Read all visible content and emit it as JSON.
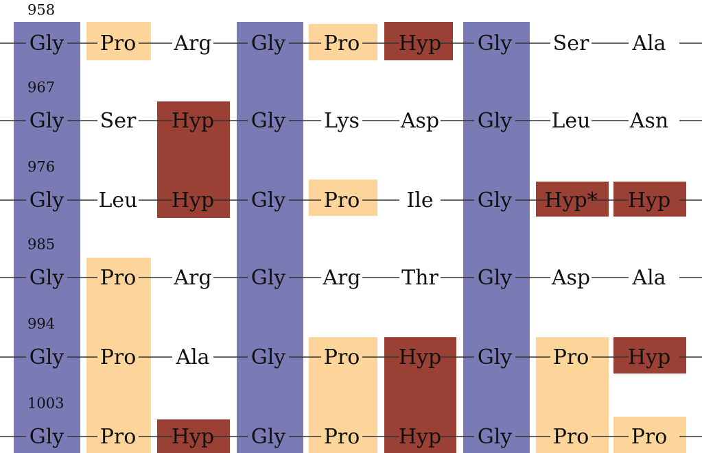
{
  "rows": [
    {
      "number": "958",
      "residues": [
        "Gly",
        "Pro",
        "Arg",
        "Gly",
        "Pro",
        "Hyp",
        "Gly",
        "Ser",
        "Ala"
      ]
    },
    {
      "number": "967",
      "residues": [
        "Gly",
        "Ser",
        "Hyp",
        "Gly",
        "Lys",
        "Asp",
        "Gly",
        "Leu",
        "Asn"
      ]
    },
    {
      "number": "976",
      "residues": [
        "Gly",
        "Leu",
        "Hyp",
        "Gly",
        "Pro",
        "Ile",
        "Gly",
        "Hyp*",
        "Hyp"
      ]
    },
    {
      "number": "985",
      "residues": [
        "Gly",
        "Pro",
        "Arg",
        "Gly",
        "Arg",
        "Thr",
        "Gly",
        "Asp",
        "Ala"
      ]
    },
    {
      "number": "994",
      "residues": [
        "Gly",
        "Pro",
        "Ala",
        "Gly",
        "Pro",
        "Hyp",
        "Gly",
        "Pro",
        "Hyp"
      ]
    },
    {
      "number": "1003",
      "residues": [
        "Gly",
        "Pro",
        "Hyp",
        "Gly",
        "Pro",
        "Hyp",
        "Gly",
        "Pro",
        "Pro"
      ]
    }
  ]
}
